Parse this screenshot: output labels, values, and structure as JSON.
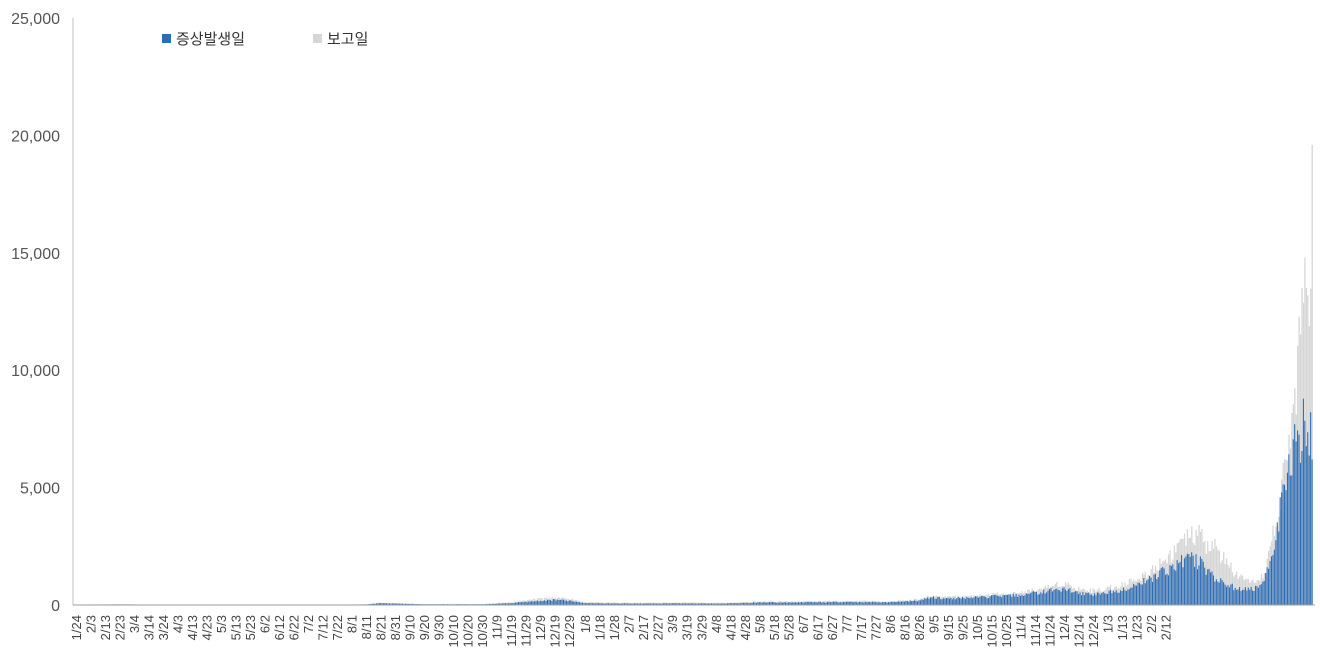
{
  "chart_data": {
    "type": "bar",
    "title": "",
    "xlabel": "",
    "ylabel": "",
    "ylim": [
      0,
      25000
    ],
    "yticks": [
      0,
      5000,
      10000,
      15000,
      20000,
      25000
    ],
    "ytick_labels": [
      "0",
      "5,000",
      "10,000",
      "15,000",
      "20,000",
      "25,000"
    ],
    "grid": false,
    "legend_position": "top-left",
    "x_start": "1/24",
    "x_end": "2/18",
    "xtick_labels": [
      "1/24",
      "2/3",
      "2/13",
      "2/23",
      "3/4",
      "3/14",
      "3/24",
      "4/3",
      "4/13",
      "4/23",
      "5/3",
      "5/13",
      "5/23",
      "6/2",
      "6/12",
      "6/22",
      "7/2",
      "7/12",
      "7/22",
      "8/1",
      "8/11",
      "8/21",
      "8/31",
      "9/10",
      "9/20",
      "9/30",
      "10/10",
      "10/20",
      "10/30",
      "11/9",
      "11/19",
      "11/29",
      "12/9",
      "12/19",
      "12/29",
      "1/8",
      "1/18",
      "1/28",
      "2/7",
      "2/17",
      "2/27",
      "3/9",
      "3/19",
      "3/29",
      "4/8",
      "4/18",
      "4/28",
      "5/8",
      "5/18",
      "5/28",
      "6/7",
      "6/17",
      "6/27",
      "7/7",
      "7/17",
      "7/27",
      "8/6",
      "8/16",
      "8/26",
      "9/5",
      "9/15",
      "9/25",
      "10/5",
      "10/15",
      "10/25",
      "11/4",
      "11/14",
      "11/24",
      "12/4",
      "12/14",
      "12/24",
      "1/3",
      "1/13",
      "1/23",
      "2/2",
      "2/12"
    ],
    "series": [
      {
        "name": "증상발생일",
        "color": "#2e6db4",
        "anchors": [
          [
            1,
            10
          ],
          [
            30,
            25
          ],
          [
            60,
            5
          ],
          [
            180,
            5
          ],
          [
            200,
            20
          ],
          [
            210,
            80
          ],
          [
            220,
            60
          ],
          [
            240,
            30
          ],
          [
            280,
            30
          ],
          [
            300,
            80
          ],
          [
            320,
            180
          ],
          [
            330,
            220
          ],
          [
            340,
            180
          ],
          [
            350,
            80
          ],
          [
            380,
            60
          ],
          [
            420,
            70
          ],
          [
            440,
            60
          ],
          [
            460,
            80
          ],
          [
            470,
            110
          ],
          [
            520,
            120
          ],
          [
            540,
            120
          ],
          [
            560,
            110
          ],
          [
            580,
            180
          ],
          [
            590,
            320
          ],
          [
            600,
            280
          ],
          [
            620,
            320
          ],
          [
            650,
            420
          ],
          [
            660,
            500
          ],
          [
            670,
            600
          ],
          [
            680,
            700
          ],
          [
            690,
            520
          ],
          [
            700,
            450
          ],
          [
            710,
            520
          ],
          [
            720,
            650
          ],
          [
            730,
            850
          ],
          [
            740,
            1100
          ],
          [
            755,
            1600
          ],
          [
            765,
            2000
          ],
          [
            775,
            1800
          ],
          [
            785,
            1200
          ],
          [
            795,
            800
          ],
          [
            805,
            650
          ],
          [
            815,
            700
          ],
          [
            820,
            1200
          ],
          [
            825,
            2500
          ],
          [
            830,
            4000
          ],
          [
            835,
            5500
          ],
          [
            840,
            6600
          ],
          [
            845,
            7400
          ],
          [
            849,
            8500
          ],
          [
            852,
            6200
          ]
        ]
      },
      {
        "name": "보고일",
        "color": "#d6d6d6",
        "anchors": [
          [
            1,
            20
          ],
          [
            30,
            40
          ],
          [
            60,
            10
          ],
          [
            180,
            10
          ],
          [
            200,
            40
          ],
          [
            210,
            100
          ],
          [
            220,
            70
          ],
          [
            240,
            40
          ],
          [
            280,
            40
          ],
          [
            300,
            120
          ],
          [
            320,
            260
          ],
          [
            330,
            320
          ],
          [
            340,
            260
          ],
          [
            350,
            120
          ],
          [
            380,
            90
          ],
          [
            420,
            100
          ],
          [
            440,
            90
          ],
          [
            460,
            110
          ],
          [
            470,
            150
          ],
          [
            520,
            160
          ],
          [
            540,
            170
          ],
          [
            560,
            150
          ],
          [
            580,
            240
          ],
          [
            590,
            380
          ],
          [
            600,
            340
          ],
          [
            620,
            400
          ],
          [
            650,
            520
          ],
          [
            660,
            600
          ],
          [
            670,
            760
          ],
          [
            680,
            950
          ],
          [
            690,
            700
          ],
          [
            700,
            600
          ],
          [
            710,
            700
          ],
          [
            720,
            850
          ],
          [
            730,
            1050
          ],
          [
            740,
            1400
          ],
          [
            755,
            2200
          ],
          [
            765,
            2800
          ],
          [
            775,
            3000
          ],
          [
            780,
            2400
          ],
          [
            785,
            2500
          ],
          [
            795,
            1600
          ],
          [
            805,
            1000
          ],
          [
            815,
            900
          ],
          [
            820,
            1600
          ],
          [
            825,
            3000
          ],
          [
            830,
            4300
          ],
          [
            835,
            6600
          ],
          [
            840,
            8500
          ],
          [
            843,
            11800
          ],
          [
            846,
            13200
          ],
          [
            848,
            12400
          ],
          [
            850,
            11700
          ],
          [
            852,
            19600
          ]
        ]
      }
    ]
  }
}
